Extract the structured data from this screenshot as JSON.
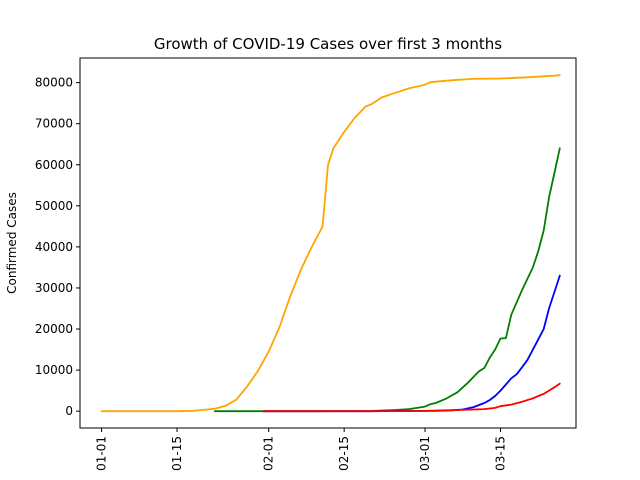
{
  "chart_data": {
    "type": "line",
    "title": "Growth of COVID-19 Cases over first 3 months",
    "xlabel": "",
    "ylabel": "Confirmed Cases",
    "x_ticks": [
      "01-01",
      "01-15",
      "02-01",
      "02-15",
      "03-01",
      "03-15"
    ],
    "x_tick_days": [
      0,
      14,
      31,
      45,
      60,
      74
    ],
    "y_ticks": [
      0,
      10000,
      20000,
      30000,
      40000,
      50000,
      60000,
      70000,
      80000
    ],
    "y_tick_labels": [
      "0",
      "10000",
      "20000",
      "30000",
      "40000",
      "50000",
      "60000",
      "70000",
      "80000"
    ],
    "xlim": [
      "12-28",
      "03-29"
    ],
    "ylim": [
      -4100,
      86000
    ],
    "grid": false,
    "legend": "none",
    "series": [
      {
        "color": "#ffa500",
        "points": [
          [
            "01-01",
            0
          ],
          [
            "01-10",
            0
          ],
          [
            "01-15",
            0
          ],
          [
            "01-18",
            100
          ],
          [
            "01-20",
            300
          ],
          [
            "01-22",
            600
          ],
          [
            "01-24",
            1300
          ],
          [
            "01-26",
            2800
          ],
          [
            "01-28",
            6000
          ],
          [
            "01-30",
            9800
          ],
          [
            "02-01",
            14500
          ],
          [
            "02-03",
            20500
          ],
          [
            "02-05",
            28000
          ],
          [
            "02-07",
            34500
          ],
          [
            "02-09",
            40000
          ],
          [
            "02-11",
            45000
          ],
          [
            "02-12",
            60000
          ],
          [
            "02-13",
            64000
          ],
          [
            "02-15",
            68000
          ],
          [
            "02-17",
            71500
          ],
          [
            "02-19",
            74200
          ],
          [
            "02-20",
            74700
          ],
          [
            "02-22",
            76400
          ],
          [
            "02-24",
            77300
          ],
          [
            "02-27",
            78600
          ],
          [
            "03-01",
            79500
          ],
          [
            "03-02",
            80100
          ],
          [
            "03-06",
            80600
          ],
          [
            "03-10",
            80900
          ],
          [
            "03-15",
            81000
          ],
          [
            "03-20",
            81300
          ],
          [
            "03-25",
            81700
          ],
          [
            "03-26",
            81800
          ]
        ]
      },
      {
        "color": "#008000",
        "points": [
          [
            "01-22",
            0
          ],
          [
            "01-31",
            0
          ],
          [
            "02-10",
            0
          ],
          [
            "02-20",
            50
          ],
          [
            "02-24",
            250
          ],
          [
            "02-27",
            500
          ],
          [
            "03-01",
            1100
          ],
          [
            "03-02",
            1700
          ],
          [
            "03-03",
            2000
          ],
          [
            "03-05",
            3100
          ],
          [
            "03-07",
            4600
          ],
          [
            "03-09",
            7000
          ],
          [
            "03-11",
            9700
          ],
          [
            "03-12",
            10500
          ],
          [
            "03-13",
            13000
          ],
          [
            "03-14",
            15000
          ],
          [
            "03-15",
            17700
          ],
          [
            "03-16",
            17800
          ],
          [
            "03-17",
            23500
          ],
          [
            "03-19",
            29500
          ],
          [
            "03-21",
            35000
          ],
          [
            "03-22",
            39000
          ],
          [
            "03-23",
            44000
          ],
          [
            "03-24",
            52000
          ],
          [
            "03-25",
            58000
          ],
          [
            "03-26",
            64000
          ]
        ]
      },
      {
        "color": "#0000ff",
        "points": [
          [
            "01-31",
            0
          ],
          [
            "02-20",
            0
          ],
          [
            "02-28",
            60
          ],
          [
            "03-03",
            100
          ],
          [
            "03-06",
            200
          ],
          [
            "03-08",
            400
          ],
          [
            "03-10",
            1000
          ],
          [
            "03-12",
            2000
          ],
          [
            "03-13",
            2700
          ],
          [
            "03-14",
            3700
          ],
          [
            "03-15",
            5000
          ],
          [
            "03-16",
            6500
          ],
          [
            "03-17",
            8000
          ],
          [
            "03-18",
            9000
          ],
          [
            "03-19",
            10700
          ],
          [
            "03-20",
            12500
          ],
          [
            "03-21",
            15000
          ],
          [
            "03-22",
            17500
          ],
          [
            "03-23",
            20000
          ],
          [
            "03-24",
            25000
          ],
          [
            "03-25",
            29000
          ],
          [
            "03-26",
            33000
          ]
        ]
      },
      {
        "color": "#ff0000",
        "points": [
          [
            "01-31",
            0
          ],
          [
            "02-20",
            0
          ],
          [
            "02-29",
            50
          ],
          [
            "03-05",
            200
          ],
          [
            "03-08",
            300
          ],
          [
            "03-10",
            400
          ],
          [
            "03-12",
            500
          ],
          [
            "03-14",
            800
          ],
          [
            "03-15",
            1200
          ],
          [
            "03-17",
            1600
          ],
          [
            "03-19",
            2300
          ],
          [
            "03-21",
            3100
          ],
          [
            "03-22",
            3700
          ],
          [
            "03-23",
            4200
          ],
          [
            "03-24",
            5000
          ],
          [
            "03-25",
            5800
          ],
          [
            "03-26",
            6700
          ]
        ]
      }
    ]
  }
}
